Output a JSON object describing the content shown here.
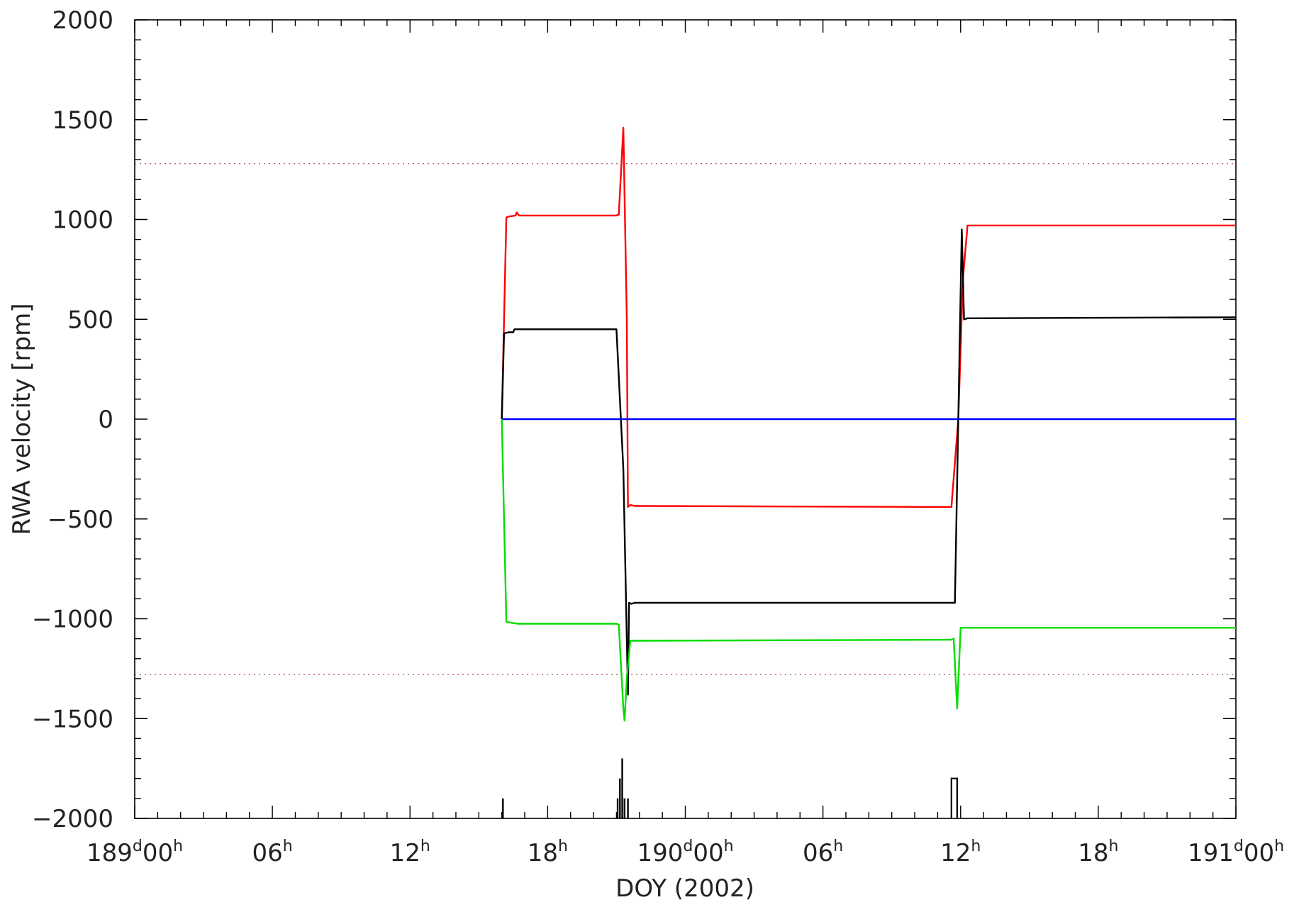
{
  "chart_data": {
    "type": "line",
    "xlabel": "DOY (2002)",
    "ylabel": "RWA velocity [rpm]",
    "xlim": [
      0,
      48
    ],
    "ylim": [
      -2000,
      2000
    ],
    "x_unit": "hours since DOY 189 00h",
    "y_ticks": [
      "2000",
      "1500",
      "1000",
      "500",
      "0",
      "−500",
      "−1000",
      "−1500",
      "−2000"
    ],
    "y_tick_values": [
      2000,
      1500,
      1000,
      500,
      0,
      -500,
      -1000,
      -1500,
      -2000
    ],
    "x_ticks": [
      {
        "x": 0,
        "main": "189",
        "sup1": "d",
        "mid": "00",
        "sup2": "h"
      },
      {
        "x": 6,
        "main": "",
        "sup1": "",
        "mid": "06",
        "sup2": "h"
      },
      {
        "x": 12,
        "main": "",
        "sup1": "",
        "mid": "12",
        "sup2": "h"
      },
      {
        "x": 18,
        "main": "",
        "sup1": "",
        "mid": "18",
        "sup2": "h"
      },
      {
        "x": 24,
        "main": "190",
        "sup1": "d",
        "mid": "00",
        "sup2": "h"
      },
      {
        "x": 30,
        "main": "",
        "sup1": "",
        "mid": "06",
        "sup2": "h"
      },
      {
        "x": 36,
        "main": "",
        "sup1": "",
        "mid": "12",
        "sup2": "h"
      },
      {
        "x": 42,
        "main": "",
        "sup1": "",
        "mid": "18",
        "sup2": "h"
      },
      {
        "x": 48,
        "main": "191",
        "sup1": "d",
        "mid": "00",
        "sup2": "h"
      }
    ],
    "reference_lines": [
      {
        "y": 1280,
        "style": "dotted",
        "color": "#c06070"
      },
      {
        "y": -1280,
        "style": "dotted",
        "color": "#c06070"
      }
    ],
    "series": [
      {
        "color": "#ff0000",
        "x": [
          16.0,
          16.2,
          16.3,
          16.6,
          16.65,
          16.75,
          21.0,
          21.1,
          21.3,
          21.45,
          21.5,
          21.6,
          21.8,
          22.0,
          35.6,
          35.9,
          36.1,
          36.3,
          48.0
        ],
        "y": [
          0,
          1010,
          1015,
          1020,
          1035,
          1020,
          1020,
          1025,
          1460,
          500,
          -440,
          -430,
          -435,
          -435,
          -440,
          0,
          700,
          970,
          970
        ]
      },
      {
        "color": "#000000",
        "x": [
          16.0,
          16.1,
          16.3,
          16.5,
          16.55,
          17.0,
          21.0,
          21.3,
          21.5,
          21.55,
          21.65,
          21.8,
          22.0,
          35.6,
          35.75,
          35.9,
          36.05,
          36.15,
          36.3,
          48.0
        ],
        "y": [
          0,
          430,
          435,
          435,
          450,
          450,
          450,
          -250,
          -1380,
          -920,
          -925,
          -920,
          -920,
          -920,
          -920,
          0,
          950,
          500,
          505,
          510
        ]
      },
      {
        "color": "#0000ff",
        "x": [
          16.0,
          48.0
        ],
        "y": [
          0,
          0
        ]
      },
      {
        "color": "#00dd00",
        "x": [
          16.0,
          16.2,
          16.4,
          16.7,
          21.0,
          21.1,
          21.3,
          21.35,
          21.45,
          21.6,
          22.0,
          35.6,
          35.7,
          35.85,
          36.0,
          36.2,
          48.0
        ],
        "y": [
          0,
          -1015,
          -1020,
          -1025,
          -1025,
          -1030,
          -1450,
          -1510,
          -1300,
          -1110,
          -1110,
          -1105,
          -1100,
          -1450,
          -1045,
          -1045,
          -1045
        ]
      }
    ],
    "event_markers": {
      "color": "#000000",
      "baseline": -2000,
      "spikes": [
        {
          "x": 16.05,
          "y": -1900
        },
        {
          "x": 21.05,
          "y": -1900
        },
        {
          "x": 21.15,
          "y": -1800
        },
        {
          "x": 21.25,
          "y": -1700
        },
        {
          "x": 21.35,
          "y": -1900
        },
        {
          "x": 21.5,
          "y": -1900
        }
      ],
      "pulses": [
        {
          "x0": 35.6,
          "x1": 35.85,
          "y": -1800
        }
      ]
    }
  }
}
